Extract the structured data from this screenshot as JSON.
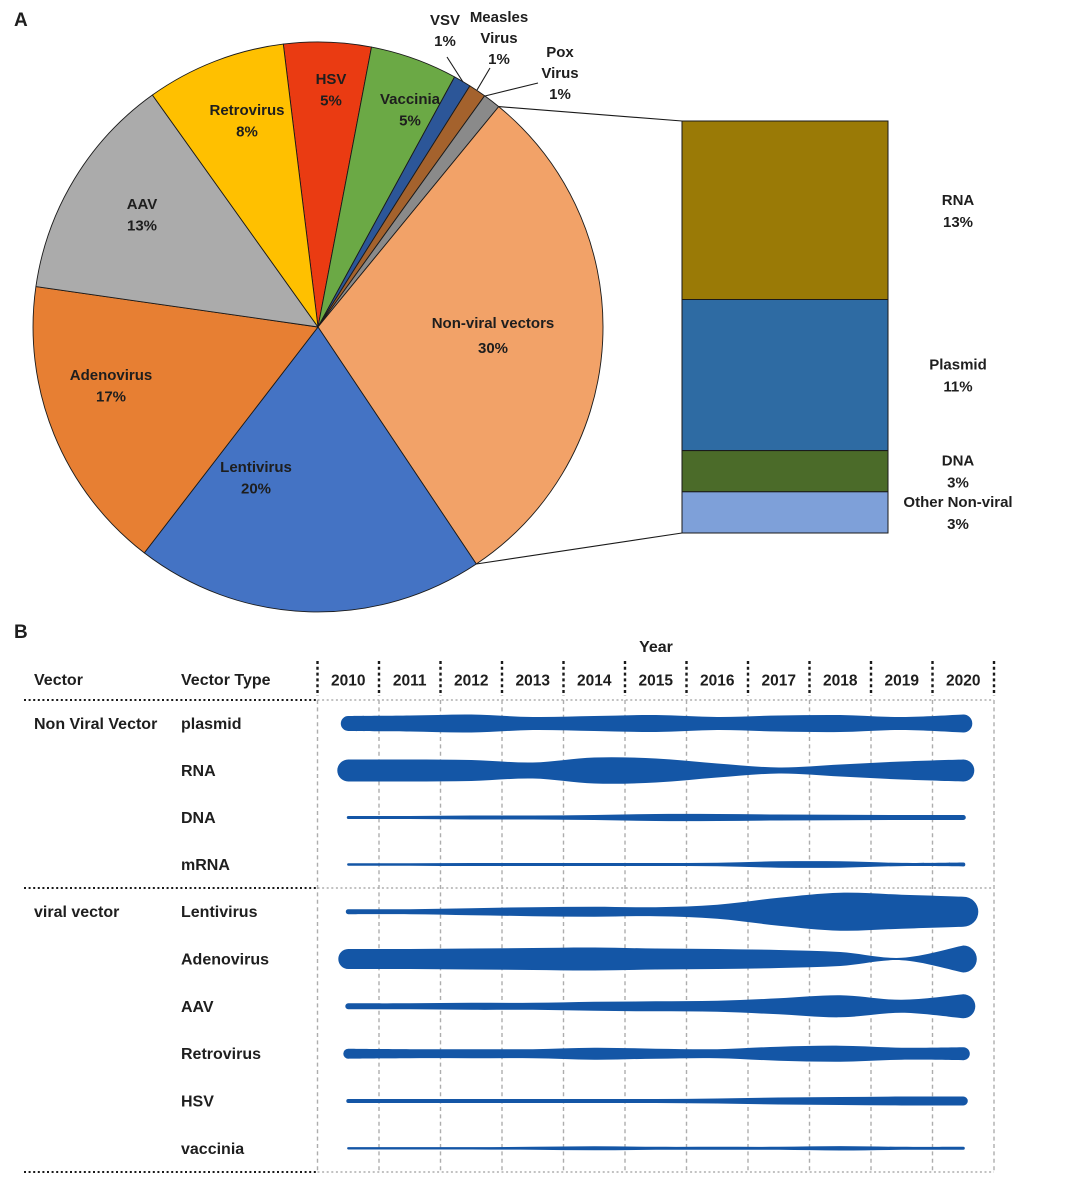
{
  "panel_a": {
    "letter": "A"
  },
  "panel_b": {
    "letter": "B",
    "headers": {
      "vector": "Vector",
      "vector_type": "Vector Type",
      "year": "Year"
    }
  },
  "colors": {
    "stream_blue": "#1456A6",
    "grid_gray": "#ADADAD",
    "outline_black": "#1a1a1a"
  },
  "chart_data": [
    {
      "type": "pie",
      "legend_position": "labels-on-slices",
      "slices": [
        {
          "label": "HSV",
          "value": 5,
          "color": "#EA3B12",
          "label_lines": [
            "HSV",
            "5%"
          ]
        },
        {
          "label": "Vaccinia",
          "value": 5,
          "color": "#6BA945",
          "label_lines": [
            "Vaccinia",
            "5%"
          ]
        },
        {
          "label": "VSV",
          "value": 1,
          "color": "#2C5698",
          "label_lines": [
            "VSV",
            "1%"
          ]
        },
        {
          "label": "Measles Virus",
          "value": 1,
          "color": "#A4622D",
          "label_lines": [
            "Measles",
            "Virus",
            "1%"
          ]
        },
        {
          "label": "Pox Virus",
          "value": 1,
          "color": "#8A8A8A",
          "label_lines": [
            "Pox",
            "Virus",
            "1%"
          ]
        },
        {
          "label": "Non-viral vectors",
          "value": 30,
          "color": "#F2A268",
          "label_lines": [
            "Non-viral vectors",
            "30%"
          ]
        },
        {
          "label": "Lentivirus",
          "value": 20,
          "color": "#4473C4",
          "label_lines": [
            "Lentivirus",
            "20%"
          ]
        },
        {
          "label": "Adenovirus",
          "value": 17,
          "color": "#E77F33",
          "label_lines": [
            "Adenovirus",
            "17%"
          ]
        },
        {
          "label": "AAV",
          "value": 13,
          "color": "#ABABAB",
          "label_lines": [
            "AAV",
            "13%"
          ]
        },
        {
          "label": "Retrovirus",
          "value": 8,
          "color": "#FFC000",
          "label_lines": [
            "Retrovirus",
            "8%"
          ]
        }
      ],
      "breakout_bar": {
        "parent": "Non-viral vectors",
        "segments": [
          {
            "label": "RNA",
            "value": 13,
            "color": "#9A7A06",
            "label_lines": [
              "RNA",
              "13%"
            ]
          },
          {
            "label": "Plasmid",
            "value": 11,
            "color": "#2E6BA3",
            "label_lines": [
              "Plasmid",
              "11%"
            ]
          },
          {
            "label": "DNA",
            "value": 3,
            "color": "#4B6B29",
            "label_lines": [
              "DNA",
              "3%"
            ]
          },
          {
            "label": "Other Non-viral",
            "value": 3,
            "color": "#7EA0D9",
            "label_lines": [
              "Other Non-viral",
              "3%"
            ]
          }
        ]
      }
    },
    {
      "type": "area",
      "title": "Year",
      "x": [
        2010,
        2011,
        2012,
        2013,
        2014,
        2015,
        2016,
        2017,
        2018,
        2019,
        2020
      ],
      "units": "relative usage (stream half-width)",
      "groups": [
        {
          "name": "Non Viral Vector",
          "rows": [
            {
              "label": "plasmid",
              "values": [
                7.5,
                8,
                9,
                6.5,
                7.5,
                8.5,
                6.5,
                8,
                8.5,
                6.5,
                9
              ]
            },
            {
              "label": "RNA",
              "values": [
                11,
                11,
                10.5,
                8,
                13,
                12,
                7,
                3,
                6,
                9,
                11
              ]
            },
            {
              "label": "DNA",
              "values": [
                1.5,
                1.5,
                2,
                2,
                2.5,
                3.5,
                3.5,
                3,
                2.8,
                2.5,
                2.5
              ]
            },
            {
              "label": "mRNA",
              "values": [
                1.2,
                1.2,
                1.5,
                1.5,
                1.5,
                1.5,
                1.8,
                3.2,
                3.2,
                1.6,
                2
              ]
            }
          ]
        },
        {
          "name": "viral vector",
          "rows": [
            {
              "label": "Lentivirus",
              "values": [
                2.5,
                2.5,
                3.5,
                4.5,
                5,
                4.5,
                7,
                14,
                19,
                17,
                15
              ]
            },
            {
              "label": "Adenovirus",
              "values": [
                10,
                10,
                10.5,
                11,
                11.5,
                10.5,
                10,
                9,
                7,
                1.2,
                13.5
              ]
            },
            {
              "label": "AAV",
              "values": [
                3,
                3,
                3.5,
                3.5,
                4.5,
                5,
                5.5,
                8,
                11,
                6.5,
                12
              ]
            },
            {
              "label": "Retrovirus",
              "values": [
                5,
                4.5,
                4.5,
                4.5,
                6,
                5,
                4.5,
                7,
                8,
                6,
                6.5
              ]
            },
            {
              "label": "HSV",
              "values": [
                2,
                2,
                2,
                2,
                2,
                2,
                2.5,
                3.5,
                4,
                4.5,
                4.5
              ]
            },
            {
              "label": "vaccinia",
              "values": [
                1.2,
                1.2,
                1.2,
                1.5,
                2,
                1.5,
                1.5,
                1.5,
                2.2,
                1.5,
                1.5
              ]
            }
          ]
        }
      ]
    }
  ]
}
